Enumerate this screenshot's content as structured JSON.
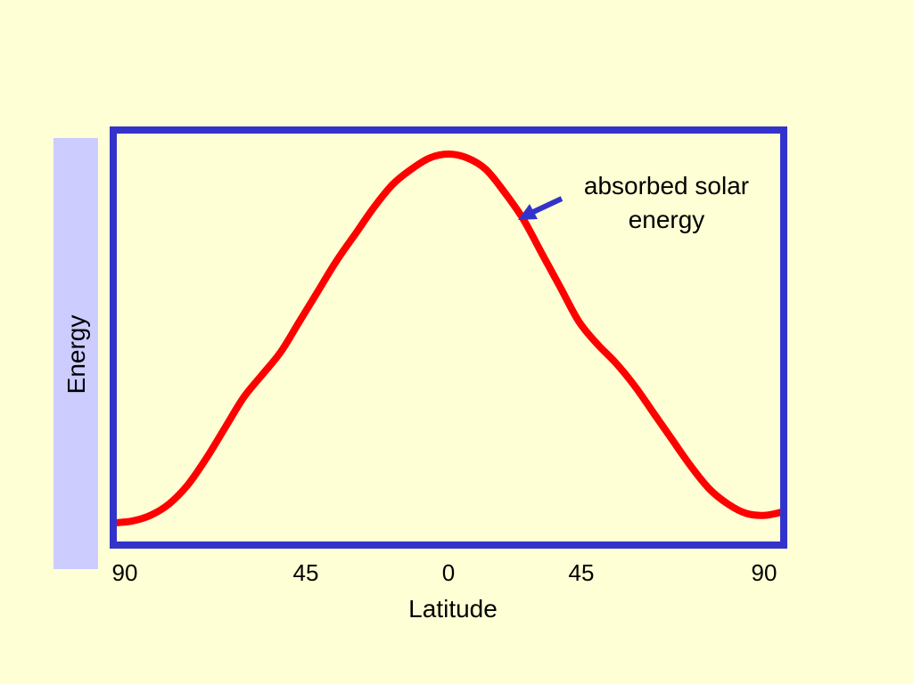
{
  "chart_data": {
    "type": "line",
    "title": "",
    "xlabel": "Latitude",
    "ylabel": "Energy",
    "x_ticks": [
      {
        "x": -90,
        "label": "90"
      },
      {
        "x": -45,
        "label": "45"
      },
      {
        "x": 0,
        "label": "0"
      },
      {
        "x": 45,
        "label": "45"
      },
      {
        "x": 90,
        "label": "90"
      }
    ],
    "xlim": [
      -90,
      90
    ],
    "ylim": [
      0,
      1
    ],
    "grid": false,
    "series": [
      {
        "name": "absorbed solar energy",
        "color": "#FF0000",
        "x": [
          -90,
          -85,
          -80,
          -75,
          -70,
          -65,
          -60,
          -55,
          -50,
          -45,
          -40,
          -35,
          -30,
          -25,
          -20,
          -15,
          -10,
          -5,
          0,
          5,
          10,
          15,
          20,
          25,
          30,
          35,
          40,
          45,
          50,
          55,
          60,
          65,
          70,
          75,
          80,
          85,
          90
        ],
        "values": [
          0.03,
          0.035,
          0.05,
          0.08,
          0.13,
          0.2,
          0.28,
          0.36,
          0.42,
          0.48,
          0.56,
          0.64,
          0.72,
          0.79,
          0.86,
          0.92,
          0.96,
          0.99,
          1.0,
          0.99,
          0.96,
          0.9,
          0.83,
          0.74,
          0.65,
          0.56,
          0.5,
          0.45,
          0.39,
          0.32,
          0.25,
          0.18,
          0.12,
          0.08,
          0.055,
          0.05,
          0.06
        ]
      }
    ],
    "annotation": {
      "text": "absorbed solar energy",
      "line1": "absorbed solar",
      "line2": "energy"
    },
    "colors": {
      "background": "#FFFFD5",
      "frame": "#3333CC",
      "line": "#FF0000",
      "arrow": "#3333CC",
      "ylabel_band": "#CCCCFF"
    }
  }
}
